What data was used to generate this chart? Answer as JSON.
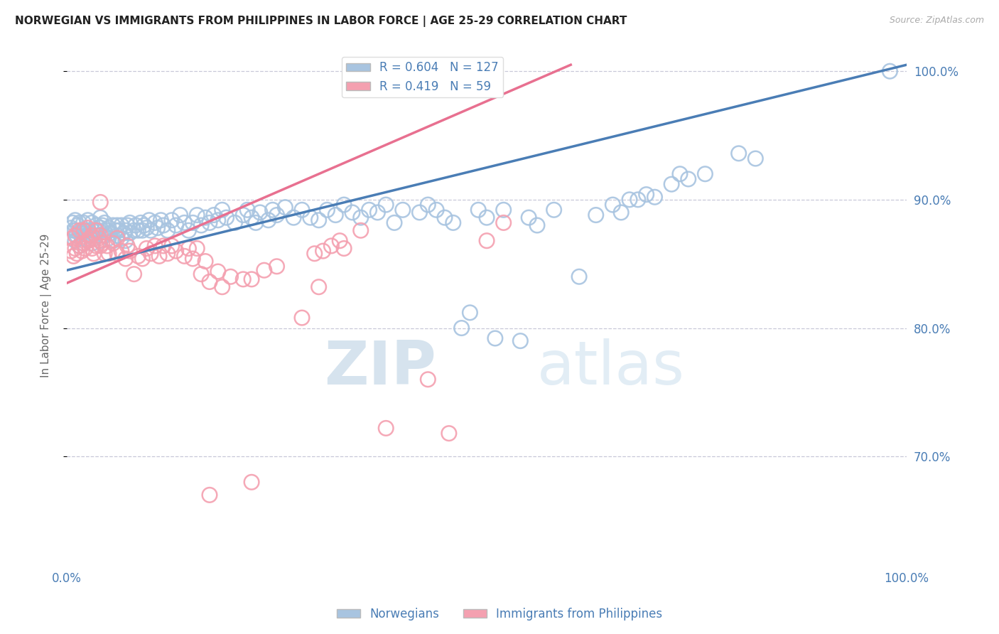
{
  "title": "NORWEGIAN VS IMMIGRANTS FROM PHILIPPINES IN LABOR FORCE | AGE 25-29 CORRELATION CHART",
  "source": "Source: ZipAtlas.com",
  "ylabel": "In Labor Force | Age 25-29",
  "legend_label1": "Norwegians",
  "legend_label2": "Immigrants from Philippines",
  "R1": 0.604,
  "N1": 127,
  "R2": 0.419,
  "N2": 59,
  "color_blue": "#a8c4e0",
  "color_pink": "#f4a0b0",
  "line_color_blue": "#4a7db5",
  "line_color_pink": "#e87090",
  "text_color_blue": "#4a7db5",
  "watermark_zip": "ZIP",
  "watermark_atlas": "atlas",
  "background_color": "#ffffff",
  "grid_color": "#c8c8d8",
  "xlim": [
    0.0,
    1.0
  ],
  "ylim": [
    0.615,
    1.02
  ],
  "yticks": [
    0.7,
    0.8,
    0.9,
    1.0
  ],
  "ytick_labels": [
    "70.0%",
    "80.0%",
    "90.0%",
    "100.0%"
  ],
  "blue_line_x": [
    0.0,
    1.0
  ],
  "blue_line_y": [
    0.845,
    1.005
  ],
  "pink_line_x": [
    0.0,
    0.6
  ],
  "pink_line_y": [
    0.835,
    1.005
  ],
  "blue_points": [
    [
      0.005,
      0.878
    ],
    [
      0.007,
      0.882
    ],
    [
      0.008,
      0.876
    ],
    [
      0.01,
      0.868
    ],
    [
      0.01,
      0.876
    ],
    [
      0.01,
      0.884
    ],
    [
      0.012,
      0.872
    ],
    [
      0.013,
      0.88
    ],
    [
      0.015,
      0.864
    ],
    [
      0.015,
      0.874
    ],
    [
      0.015,
      0.882
    ],
    [
      0.017,
      0.876
    ],
    [
      0.018,
      0.87
    ],
    [
      0.02,
      0.866
    ],
    [
      0.02,
      0.874
    ],
    [
      0.02,
      0.882
    ],
    [
      0.022,
      0.876
    ],
    [
      0.025,
      0.868
    ],
    [
      0.025,
      0.876
    ],
    [
      0.025,
      0.884
    ],
    [
      0.028,
      0.872
    ],
    [
      0.03,
      0.866
    ],
    [
      0.03,
      0.876
    ],
    [
      0.03,
      0.882
    ],
    [
      0.032,
      0.87
    ],
    [
      0.035,
      0.872
    ],
    [
      0.035,
      0.88
    ],
    [
      0.038,
      0.876
    ],
    [
      0.04,
      0.868
    ],
    [
      0.04,
      0.878
    ],
    [
      0.04,
      0.886
    ],
    [
      0.042,
      0.88
    ],
    [
      0.045,
      0.872
    ],
    [
      0.045,
      0.882
    ],
    [
      0.048,
      0.876
    ],
    [
      0.05,
      0.87
    ],
    [
      0.05,
      0.878
    ],
    [
      0.052,
      0.874
    ],
    [
      0.055,
      0.868
    ],
    [
      0.055,
      0.88
    ],
    [
      0.058,
      0.876
    ],
    [
      0.06,
      0.872
    ],
    [
      0.06,
      0.88
    ],
    [
      0.062,
      0.876
    ],
    [
      0.065,
      0.87
    ],
    [
      0.065,
      0.88
    ],
    [
      0.068,
      0.874
    ],
    [
      0.07,
      0.868
    ],
    [
      0.07,
      0.876
    ],
    [
      0.072,
      0.88
    ],
    [
      0.075,
      0.874
    ],
    [
      0.075,
      0.882
    ],
    [
      0.08,
      0.876
    ],
    [
      0.082,
      0.88
    ],
    [
      0.085,
      0.876
    ],
    [
      0.088,
      0.882
    ],
    [
      0.09,
      0.876
    ],
    [
      0.092,
      0.88
    ],
    [
      0.095,
      0.878
    ],
    [
      0.098,
      0.884
    ],
    [
      0.1,
      0.876
    ],
    [
      0.105,
      0.882
    ],
    [
      0.108,
      0.878
    ],
    [
      0.112,
      0.884
    ],
    [
      0.115,
      0.88
    ],
    [
      0.12,
      0.876
    ],
    [
      0.125,
      0.884
    ],
    [
      0.13,
      0.88
    ],
    [
      0.135,
      0.888
    ],
    [
      0.14,
      0.882
    ],
    [
      0.145,
      0.876
    ],
    [
      0.15,
      0.882
    ],
    [
      0.155,
      0.888
    ],
    [
      0.16,
      0.88
    ],
    [
      0.165,
      0.886
    ],
    [
      0.17,
      0.882
    ],
    [
      0.175,
      0.888
    ],
    [
      0.18,
      0.884
    ],
    [
      0.185,
      0.892
    ],
    [
      0.19,
      0.886
    ],
    [
      0.2,
      0.882
    ],
    [
      0.21,
      0.888
    ],
    [
      0.215,
      0.892
    ],
    [
      0.22,
      0.886
    ],
    [
      0.225,
      0.882
    ],
    [
      0.23,
      0.89
    ],
    [
      0.24,
      0.884
    ],
    [
      0.245,
      0.892
    ],
    [
      0.25,
      0.888
    ],
    [
      0.26,
      0.894
    ],
    [
      0.27,
      0.886
    ],
    [
      0.28,
      0.892
    ],
    [
      0.29,
      0.886
    ],
    [
      0.3,
      0.884
    ],
    [
      0.31,
      0.892
    ],
    [
      0.32,
      0.888
    ],
    [
      0.33,
      0.896
    ],
    [
      0.34,
      0.89
    ],
    [
      0.35,
      0.886
    ],
    [
      0.36,
      0.892
    ],
    [
      0.37,
      0.89
    ],
    [
      0.38,
      0.896
    ],
    [
      0.39,
      0.882
    ],
    [
      0.4,
      0.892
    ],
    [
      0.42,
      0.89
    ],
    [
      0.43,
      0.896
    ],
    [
      0.44,
      0.892
    ],
    [
      0.45,
      0.886
    ],
    [
      0.46,
      0.882
    ],
    [
      0.47,
      0.8
    ],
    [
      0.48,
      0.812
    ],
    [
      0.49,
      0.892
    ],
    [
      0.5,
      0.886
    ],
    [
      0.51,
      0.792
    ],
    [
      0.52,
      0.892
    ],
    [
      0.54,
      0.79
    ],
    [
      0.55,
      0.886
    ],
    [
      0.56,
      0.88
    ],
    [
      0.58,
      0.892
    ],
    [
      0.61,
      0.84
    ],
    [
      0.63,
      0.888
    ],
    [
      0.65,
      0.896
    ],
    [
      0.66,
      0.89
    ],
    [
      0.67,
      0.9
    ],
    [
      0.68,
      0.9
    ],
    [
      0.69,
      0.904
    ],
    [
      0.7,
      0.902
    ],
    [
      0.72,
      0.912
    ],
    [
      0.73,
      0.92
    ],
    [
      0.74,
      0.916
    ],
    [
      0.76,
      0.92
    ],
    [
      0.8,
      0.936
    ],
    [
      0.82,
      0.932
    ],
    [
      0.98,
      1.0
    ]
  ],
  "pink_points": [
    [
      0.005,
      0.86
    ],
    [
      0.007,
      0.87
    ],
    [
      0.008,
      0.856
    ],
    [
      0.01,
      0.862
    ],
    [
      0.01,
      0.872
    ],
    [
      0.012,
      0.858
    ],
    [
      0.015,
      0.864
    ],
    [
      0.015,
      0.876
    ],
    [
      0.018,
      0.86
    ],
    [
      0.02,
      0.866
    ],
    [
      0.02,
      0.876
    ],
    [
      0.022,
      0.862
    ],
    [
      0.025,
      0.868
    ],
    [
      0.025,
      0.878
    ],
    [
      0.028,
      0.87
    ],
    [
      0.03,
      0.862
    ],
    [
      0.03,
      0.872
    ],
    [
      0.032,
      0.858
    ],
    [
      0.035,
      0.864
    ],
    [
      0.035,
      0.876
    ],
    [
      0.038,
      0.87
    ],
    [
      0.04,
      0.864
    ],
    [
      0.04,
      0.872
    ],
    [
      0.04,
      0.898
    ],
    [
      0.042,
      0.866
    ],
    [
      0.045,
      0.858
    ],
    [
      0.048,
      0.864
    ],
    [
      0.05,
      0.858
    ],
    [
      0.055,
      0.866
    ],
    [
      0.06,
      0.858
    ],
    [
      0.06,
      0.87
    ],
    [
      0.065,
      0.86
    ],
    [
      0.07,
      0.854
    ],
    [
      0.072,
      0.864
    ],
    [
      0.075,
      0.86
    ],
    [
      0.08,
      0.842
    ],
    [
      0.085,
      0.856
    ],
    [
      0.09,
      0.854
    ],
    [
      0.095,
      0.862
    ],
    [
      0.1,
      0.858
    ],
    [
      0.105,
      0.864
    ],
    [
      0.11,
      0.856
    ],
    [
      0.115,
      0.864
    ],
    [
      0.12,
      0.858
    ],
    [
      0.125,
      0.864
    ],
    [
      0.13,
      0.86
    ],
    [
      0.14,
      0.856
    ],
    [
      0.145,
      0.862
    ],
    [
      0.15,
      0.854
    ],
    [
      0.155,
      0.862
    ],
    [
      0.16,
      0.842
    ],
    [
      0.165,
      0.852
    ],
    [
      0.17,
      0.836
    ],
    [
      0.18,
      0.844
    ],
    [
      0.185,
      0.832
    ],
    [
      0.195,
      0.84
    ],
    [
      0.21,
      0.838
    ],
    [
      0.22,
      0.838
    ],
    [
      0.235,
      0.845
    ],
    [
      0.25,
      0.848
    ],
    [
      0.295,
      0.858
    ],
    [
      0.305,
      0.86
    ],
    [
      0.315,
      0.864
    ],
    [
      0.325,
      0.868
    ],
    [
      0.33,
      0.862
    ],
    [
      0.35,
      0.876
    ],
    [
      0.38,
      0.722
    ],
    [
      0.43,
      0.76
    ],
    [
      0.455,
      0.718
    ],
    [
      0.17,
      0.67
    ],
    [
      0.22,
      0.68
    ],
    [
      0.28,
      0.808
    ],
    [
      0.3,
      0.832
    ],
    [
      0.5,
      0.868
    ],
    [
      0.52,
      0.882
    ]
  ]
}
